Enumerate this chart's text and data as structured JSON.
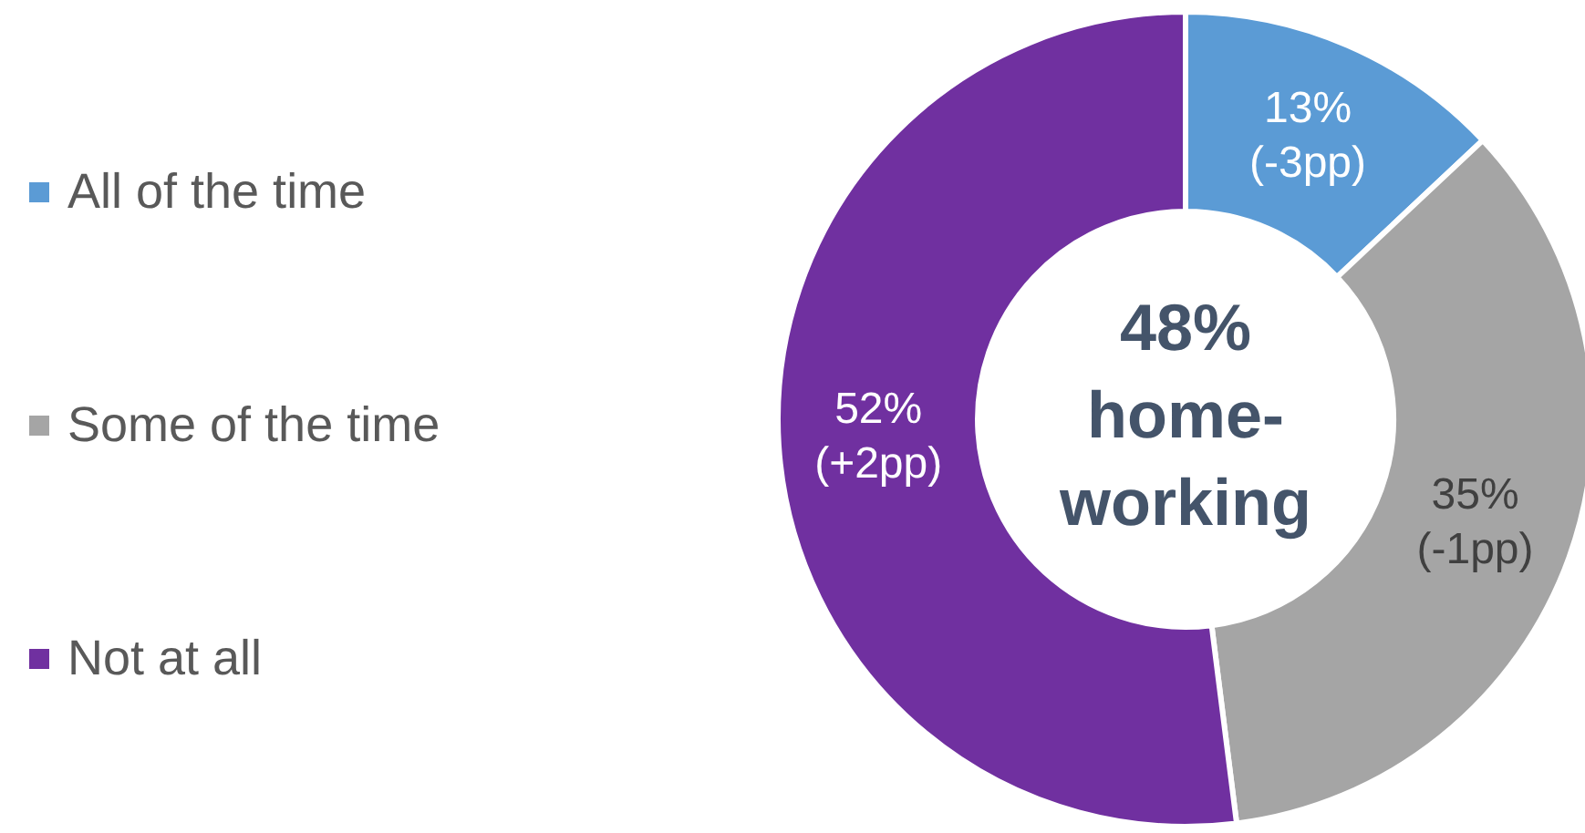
{
  "chart_data": {
    "type": "donut",
    "categories": [
      "All of the time",
      "Some of the time",
      "Not at all"
    ],
    "values": [
      13,
      35,
      52
    ],
    "colors": [
      "#5b9bd5",
      "#a5a5a5",
      "#7030a0"
    ],
    "value_labels": [
      "13%\n(-3pp)",
      "35%\n(-1pp)",
      "52%\n(+2pp)"
    ],
    "annotations": [
      "48%\nhome-\nworking"
    ],
    "legend": "left"
  }
}
